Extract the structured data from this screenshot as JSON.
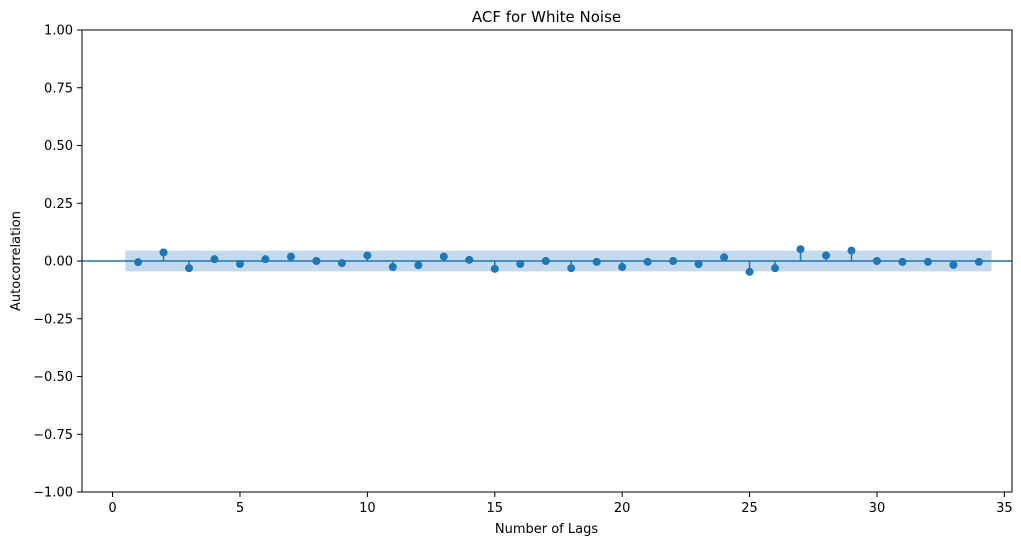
{
  "chart_data": {
    "type": "stem",
    "title": "ACF for White Noise",
    "xlabel": "Number of Lags",
    "ylabel": "Autocorrelation",
    "xlim": [
      -1.2,
      35.3
    ],
    "ylim": [
      -1.0,
      1.0
    ],
    "x_ticks": [
      "0",
      "5",
      "10",
      "15",
      "20",
      "25",
      "30",
      "35"
    ],
    "y_ticks": [
      "−1.00",
      "−0.75",
      "−0.50",
      "−0.25",
      "0.00",
      "0.25",
      "0.50",
      "0.75",
      "1.00"
    ],
    "confidence_band": {
      "lower": -0.045,
      "upper": 0.045,
      "x_range": [
        0.5,
        34.5
      ]
    },
    "zero_line": 0,
    "color": "#1f77b4",
    "band_color": "#c5d9ec",
    "grid": false,
    "lags": [
      1,
      2,
      3,
      4,
      5,
      6,
      7,
      8,
      9,
      10,
      11,
      12,
      13,
      14,
      15,
      16,
      17,
      18,
      19,
      20,
      21,
      22,
      23,
      24,
      25,
      26,
      27,
      28,
      29,
      30,
      31,
      32,
      33,
      34
    ],
    "values": [
      -0.005,
      0.037,
      -0.031,
      0.008,
      -0.013,
      0.008,
      0.019,
      0.0,
      -0.009,
      0.024,
      -0.026,
      -0.018,
      0.019,
      0.005,
      -0.034,
      -0.013,
      0.0,
      -0.031,
      -0.004,
      -0.026,
      -0.004,
      0.0,
      -0.013,
      0.016,
      -0.047,
      -0.031,
      0.051,
      0.024,
      0.045,
      0.0,
      -0.004,
      -0.004,
      -0.017,
      -0.004
    ]
  }
}
